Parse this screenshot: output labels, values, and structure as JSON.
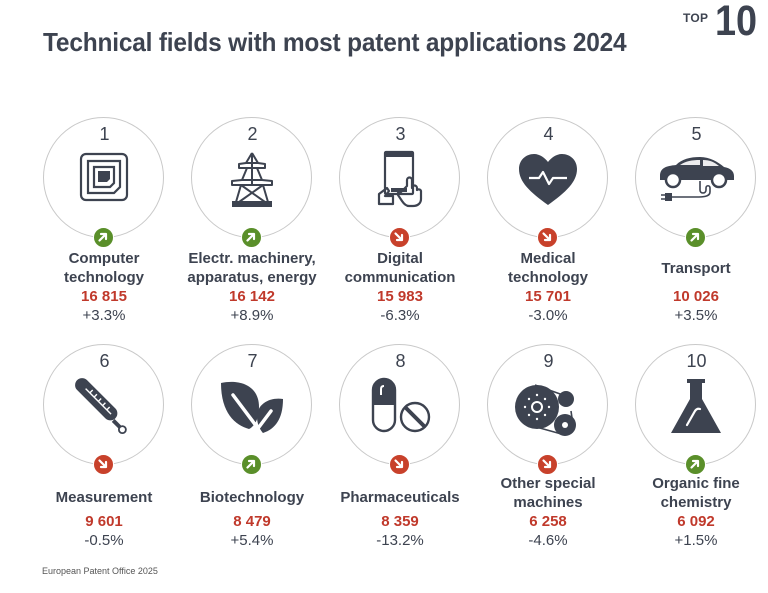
{
  "header": {
    "title": "Technical fields with most patent applications 2024",
    "badge_small": "TOP",
    "badge_big": "10"
  },
  "colors": {
    "text": "#3d4350",
    "count": "#c0392b",
    "trend_up": "#5a8f2a",
    "trend_down": "#c8412b"
  },
  "fields": [
    {
      "rank": "1",
      "label_lines": [
        "Computer",
        "technology"
      ],
      "count": "16 815",
      "change": "+3.3%",
      "trend": "up",
      "icon": "rfid-chip-icon"
    },
    {
      "rank": "2",
      "label_lines": [
        "Electr. machinery,",
        "apparatus, energy"
      ],
      "count": "16 142",
      "change": "+8.9%",
      "trend": "up",
      "icon": "power-pylon-icon"
    },
    {
      "rank": "3",
      "label_lines": [
        "Digital",
        "communication"
      ],
      "count": "15 983",
      "change": "-6.3%",
      "trend": "down",
      "icon": "tablet-hands-icon"
    },
    {
      "rank": "4",
      "label_lines": [
        "Medical",
        "technology"
      ],
      "count": "15 701",
      "change": "-3.0%",
      "trend": "down",
      "icon": "heart-pulse-icon"
    },
    {
      "rank": "5",
      "label_lines": [
        "Transport"
      ],
      "count": "10 026",
      "change": "+3.5%",
      "trend": "up",
      "icon": "electric-car-icon"
    },
    {
      "rank": "6",
      "label_lines": [
        "Measurement"
      ],
      "count": "9 601",
      "change": "-0.5%",
      "trend": "down",
      "icon": "thermometer-icon"
    },
    {
      "rank": "7",
      "label_lines": [
        "Biotechnology"
      ],
      "count": "8 479",
      "change": "+5.4%",
      "trend": "up",
      "icon": "leaves-icon"
    },
    {
      "rank": "8",
      "label_lines": [
        "Pharmaceuticals"
      ],
      "count": "8 359",
      "change": "-13.2%",
      "trend": "down",
      "icon": "pills-icon"
    },
    {
      "rank": "9",
      "label_lines": [
        "Other special",
        "machines"
      ],
      "count": "6 258",
      "change": "-4.6%",
      "trend": "down",
      "icon": "belt-pulley-icon"
    },
    {
      "rank": "10",
      "label_lines": [
        "Organic fine",
        "chemistry"
      ],
      "count": "6 092",
      "change": "+1.5%",
      "trend": "up",
      "icon": "flask-icon"
    }
  ],
  "footer": {
    "source": "European Patent Office 2025"
  }
}
